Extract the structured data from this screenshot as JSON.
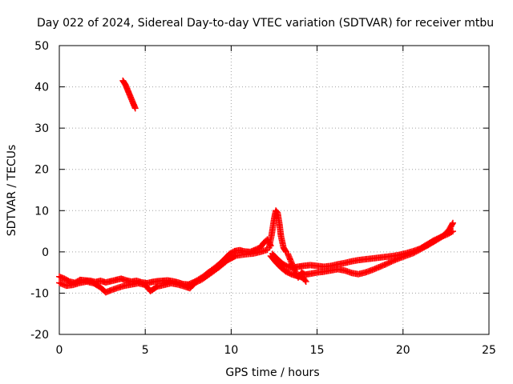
{
  "chart_data": {
    "type": "scatter",
    "title": "Day 022 of 2024, Sidereal Day-to-day VTEC variation (SDTVAR) for receiver mtbu",
    "xlabel": "GPS time / hours",
    "ylabel": "SDTVAR / TECUs",
    "xlim": [
      0,
      25
    ],
    "ylim": [
      -20,
      50
    ],
    "x_ticks": [
      0,
      5,
      10,
      15,
      20,
      25
    ],
    "y_ticks": [
      -20,
      -10,
      0,
      10,
      20,
      30,
      40,
      50
    ],
    "grid": true,
    "marker": "plus",
    "color": "#ff0000",
    "series": [
      {
        "name": "SDTVAR",
        "segments": [
          [
            [
              0.0,
              -6.0
            ],
            [
              0.3,
              -6.5
            ],
            [
              0.6,
              -7.2
            ],
            [
              0.9,
              -7.5
            ],
            [
              1.2,
              -6.8
            ],
            [
              1.5,
              -6.9
            ],
            [
              1.8,
              -7.0
            ],
            [
              2.1,
              -7.3
            ],
            [
              2.4,
              -7.0
            ],
            [
              2.7,
              -7.4
            ],
            [
              3.0,
              -7.1
            ],
            [
              3.3,
              -6.8
            ],
            [
              3.6,
              -6.5
            ],
            [
              3.9,
              -6.9
            ],
            [
              4.2,
              -7.2
            ],
            [
              4.5,
              -7.0
            ],
            [
              4.8,
              -7.4
            ],
            [
              5.1,
              -7.6
            ],
            [
              5.4,
              -7.3
            ],
            [
              5.7,
              -7.1
            ],
            [
              6.0,
              -7.0
            ],
            [
              6.3,
              -6.9
            ],
            [
              6.6,
              -7.1
            ],
            [
              6.9,
              -7.4
            ],
            [
              7.2,
              -7.8
            ],
            [
              7.5,
              -7.9
            ],
            [
              7.8,
              -7.4
            ],
            [
              8.1,
              -6.7
            ],
            [
              8.4,
              -5.9
            ],
            [
              8.7,
              -4.9
            ],
            [
              9.0,
              -4.0
            ],
            [
              9.3,
              -3.0
            ],
            [
              9.6,
              -1.8
            ],
            [
              9.9,
              -0.5
            ],
            [
              10.2,
              0.2
            ],
            [
              10.5,
              0.4
            ],
            [
              10.8,
              0.1
            ],
            [
              11.1,
              0.0
            ],
            [
              11.4,
              0.5
            ],
            [
              11.7,
              1.1
            ],
            [
              11.9,
              2.2
            ],
            [
              12.1,
              3.0
            ],
            [
              12.3,
              1.5
            ]
          ],
          [
            [
              0.0,
              -7.5
            ],
            [
              0.4,
              -8.2
            ],
            [
              0.8,
              -8.0
            ],
            [
              1.2,
              -7.5
            ],
            [
              1.6,
              -7.2
            ],
            [
              2.0,
              -7.6
            ],
            [
              2.4,
              -8.6
            ],
            [
              2.7,
              -9.8
            ],
            [
              3.0,
              -9.3
            ],
            [
              3.4,
              -8.7
            ],
            [
              3.8,
              -8.2
            ],
            [
              4.2,
              -7.9
            ],
            [
              4.6,
              -7.6
            ],
            [
              5.0,
              -8.0
            ],
            [
              5.3,
              -9.5
            ],
            [
              5.7,
              -8.4
            ],
            [
              6.1,
              -8.0
            ],
            [
              6.5,
              -7.6
            ],
            [
              6.9,
              -7.9
            ],
            [
              7.3,
              -8.4
            ],
            [
              7.6,
              -8.8
            ],
            [
              7.9,
              -7.5
            ],
            [
              8.3,
              -6.7
            ],
            [
              8.8,
              -5.2
            ],
            [
              9.3,
              -3.7
            ],
            [
              9.8,
              -2.0
            ],
            [
              10.3,
              -0.9
            ],
            [
              10.8,
              -0.6
            ],
            [
              11.3,
              -0.4
            ],
            [
              11.7,
              0.0
            ],
            [
              12.1,
              0.5
            ]
          ],
          [
            [
              12.2,
              1.0
            ],
            [
              12.35,
              4.0
            ],
            [
              12.5,
              8.0
            ],
            [
              12.6,
              10.0
            ],
            [
              12.7,
              9.5
            ],
            [
              12.8,
              7.0
            ],
            [
              12.9,
              3.8
            ],
            [
              13.05,
              1.0
            ],
            [
              13.2,
              0.0
            ]
          ],
          [
            [
              12.3,
              -1.0
            ],
            [
              12.6,
              -2.5
            ],
            [
              12.9,
              -3.8
            ],
            [
              13.2,
              -4.8
            ],
            [
              13.5,
              -5.4
            ],
            [
              13.8,
              -5.8
            ],
            [
              14.0,
              -6.0
            ],
            [
              14.2,
              -6.3
            ],
            [
              14.35,
              -7.2
            ]
          ],
          [
            [
              12.4,
              -0.5
            ],
            [
              12.7,
              -1.8
            ],
            [
              13.0,
              -2.9
            ],
            [
              13.3,
              -3.6
            ],
            [
              13.6,
              -3.8
            ],
            [
              13.9,
              -3.6
            ],
            [
              14.2,
              -3.4
            ],
            [
              14.6,
              -3.2
            ],
            [
              15.0,
              -3.4
            ],
            [
              15.4,
              -3.6
            ],
            [
              15.8,
              -3.4
            ],
            [
              16.2,
              -3.0
            ],
            [
              16.6,
              -2.7
            ],
            [
              17.0,
              -2.3
            ],
            [
              17.4,
              -2.0
            ],
            [
              17.8,
              -1.8
            ],
            [
              18.2,
              -1.6
            ],
            [
              18.6,
              -1.4
            ],
            [
              19.0,
              -1.2
            ],
            [
              19.4,
              -1.0
            ],
            [
              19.8,
              -0.7
            ],
            [
              20.2,
              -0.3
            ],
            [
              20.6,
              0.2
            ],
            [
              21.0,
              0.8
            ],
            [
              21.4,
              1.8
            ],
            [
              21.8,
              2.8
            ],
            [
              22.2,
              3.6
            ],
            [
              22.6,
              4.3
            ],
            [
              22.9,
              5.0
            ]
          ],
          [
            [
              13.3,
              -0.5
            ],
            [
              13.5,
              -2.5
            ],
            [
              13.7,
              -4.5
            ],
            [
              13.9,
              -6.2
            ],
            [
              14.1,
              -5.0
            ],
            [
              14.3,
              -5.5
            ],
            [
              14.6,
              -5.3
            ],
            [
              15.0,
              -5.0
            ],
            [
              15.4,
              -4.8
            ],
            [
              15.8,
              -4.5
            ],
            [
              16.2,
              -4.2
            ],
            [
              16.6,
              -4.5
            ],
            [
              17.0,
              -5.1
            ],
            [
              17.4,
              -5.4
            ],
            [
              17.8,
              -5.0
            ],
            [
              18.2,
              -4.4
            ],
            [
              18.6,
              -3.7
            ],
            [
              19.0,
              -3.0
            ],
            [
              19.4,
              -2.2
            ],
            [
              19.8,
              -1.5
            ],
            [
              20.2,
              -0.9
            ],
            [
              20.6,
              -0.3
            ],
            [
              21.0,
              0.6
            ],
            [
              21.4,
              1.5
            ],
            [
              21.8,
              2.5
            ],
            [
              22.2,
              3.5
            ],
            [
              22.5,
              4.5
            ],
            [
              22.7,
              5.5
            ],
            [
              22.9,
              7.0
            ]
          ],
          [
            [
              3.7,
              41.5
            ],
            [
              3.85,
              40.5
            ],
            [
              4.0,
              39.0
            ],
            [
              4.15,
              37.5
            ],
            [
              4.3,
              36.0
            ],
            [
              4.42,
              34.8
            ]
          ]
        ]
      }
    ]
  }
}
